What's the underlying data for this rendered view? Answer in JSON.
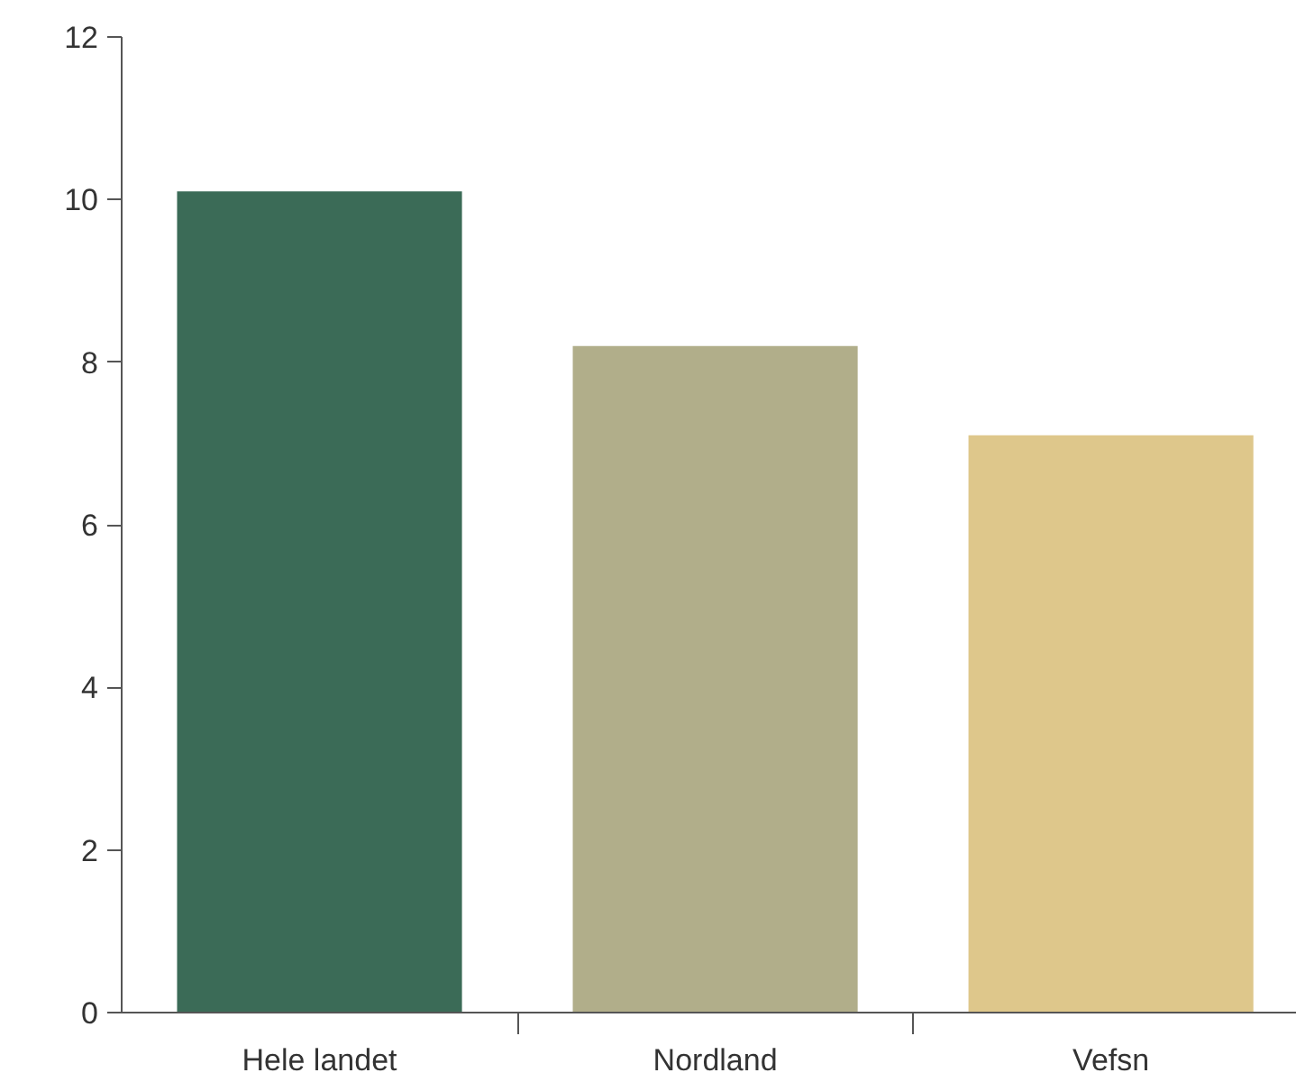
{
  "chart_data": {
    "type": "bar",
    "categories": [
      "Hele landet",
      "Nordland",
      "Vefsn"
    ],
    "values": [
      10.1,
      8.2,
      7.1
    ],
    "colors": [
      "#3b6b57",
      "#b1ae8a",
      "#dec78b"
    ],
    "ylim": [
      0,
      12
    ],
    "yticks": [
      0,
      2,
      4,
      6,
      8,
      10,
      12
    ],
    "grid": false
  }
}
